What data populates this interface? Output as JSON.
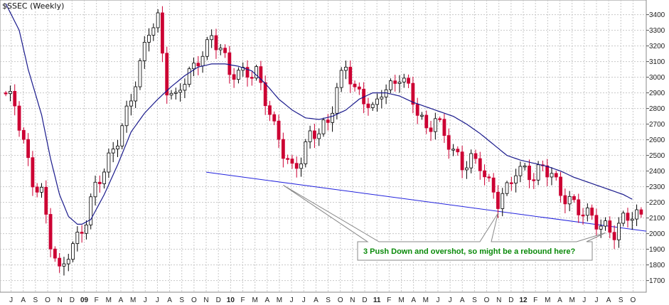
{
  "chart_data": {
    "type": "candlestick",
    "title": "$SSEC (Weekly)",
    "y_ticks": [
      1700,
      1800,
      1900,
      2000,
      2100,
      2200,
      2300,
      2400,
      2500,
      2600,
      2700,
      2800,
      2900,
      3000,
      3100,
      3200,
      3300,
      3400
    ],
    "ylim": [
      1630,
      3480
    ],
    "x_ticks": [
      "J",
      "A",
      "S",
      "O",
      "N",
      "D",
      "09",
      "F",
      "M",
      "A",
      "M",
      "J",
      "J",
      "A",
      "S",
      "O",
      "N",
      "D",
      "10",
      "F",
      "M",
      "A",
      "M",
      "J",
      "J",
      "A",
      "S",
      "O",
      "N",
      "D",
      "11",
      "F",
      "M",
      "A",
      "M",
      "J",
      "J",
      "A",
      "S",
      "O",
      "N",
      "D",
      "12",
      "F",
      "M",
      "A",
      "M",
      "J",
      "J",
      "A",
      "S",
      "O"
    ],
    "year_ticks": [
      "09",
      "10",
      "11",
      "12"
    ],
    "grid": true,
    "colors": {
      "up": "#ffffff",
      "down": "#cc0033",
      "outline": "#000000",
      "ma": "#1a1a8c",
      "trendline": "#2222dd",
      "annotation_text": "#0a8a0a",
      "grid": "#c8c8c8"
    },
    "moving_average_anchors": [
      [
        0,
        3470
      ],
      [
        3,
        3300
      ],
      [
        5,
        3050
      ],
      [
        8,
        2760
      ],
      [
        10,
        2480
      ],
      [
        12,
        2250
      ],
      [
        14,
        2110
      ],
      [
        16,
        2060
      ],
      [
        17,
        2060
      ],
      [
        19,
        2090
      ],
      [
        22,
        2250
      ],
      [
        25,
        2440
      ],
      [
        28,
        2650
      ],
      [
        31,
        2770
      ],
      [
        34,
        2860
      ],
      [
        37,
        2940
      ],
      [
        40,
        3010
      ],
      [
        43,
        3065
      ],
      [
        46,
        3085
      ],
      [
        49,
        3085
      ],
      [
        52,
        3070
      ],
      [
        55,
        3040
      ],
      [
        58,
        2960
      ],
      [
        61,
        2860
      ],
      [
        64,
        2790
      ],
      [
        67,
        2740
      ],
      [
        70,
        2730
      ],
      [
        73,
        2750
      ],
      [
        76,
        2790
      ],
      [
        79,
        2860
      ],
      [
        82,
        2900
      ],
      [
        85,
        2900
      ],
      [
        88,
        2880
      ],
      [
        91,
        2840
      ],
      [
        94,
        2810
      ],
      [
        97,
        2780
      ],
      [
        100,
        2750
      ],
      [
        103,
        2700
      ],
      [
        106,
        2640
      ],
      [
        109,
        2570
      ],
      [
        112,
        2500
      ],
      [
        115,
        2470
      ],
      [
        118,
        2450
      ],
      [
        121,
        2430
      ],
      [
        124,
        2400
      ],
      [
        127,
        2360
      ],
      [
        130,
        2330
      ],
      [
        133,
        2300
      ],
      [
        136,
        2270
      ],
      [
        138,
        2250
      ],
      [
        140,
        2220
      ]
    ],
    "price_anchors": [
      [
        0,
        2870
      ],
      [
        2,
        2820
      ],
      [
        4,
        2600
      ],
      [
        6,
        2350
      ],
      [
        8,
        2250
      ],
      [
        10,
        1920
      ],
      [
        12,
        1740
      ],
      [
        14,
        1900
      ],
      [
        16,
        1990
      ],
      [
        18,
        2080
      ],
      [
        20,
        2280
      ],
      [
        22,
        2400
      ],
      [
        24,
        2560
      ],
      [
        26,
        2700
      ],
      [
        28,
        2860
      ],
      [
        30,
        3050
      ],
      [
        32,
        3300
      ],
      [
        34,
        3390
      ],
      [
        36,
        2950
      ],
      [
        38,
        2850
      ],
      [
        40,
        2970
      ],
      [
        42,
        3050
      ],
      [
        44,
        3180
      ],
      [
        46,
        3270
      ],
      [
        48,
        3180
      ],
      [
        50,
        3000
      ],
      [
        52,
        3020
      ],
      [
        54,
        3050
      ],
      [
        56,
        3050
      ],
      [
        58,
        2850
      ],
      [
        60,
        2650
      ],
      [
        62,
        2520
      ],
      [
        64,
        2430
      ],
      [
        66,
        2500
      ],
      [
        68,
        2620
      ],
      [
        70,
        2630
      ],
      [
        72,
        2700
      ],
      [
        74,
        2950
      ],
      [
        76,
        3100
      ],
      [
        78,
        2900
      ],
      [
        80,
        2840
      ],
      [
        82,
        2780
      ],
      [
        84,
        2940
      ],
      [
        86,
        2950
      ],
      [
        88,
        3000
      ],
      [
        90,
        2900
      ],
      [
        92,
        2780
      ],
      [
        94,
        2680
      ],
      [
        96,
        2760
      ],
      [
        98,
        2620
      ],
      [
        100,
        2500
      ],
      [
        102,
        2430
      ],
      [
        104,
        2500
      ],
      [
        106,
        2460
      ],
      [
        108,
        2300
      ],
      [
        110,
        2180
      ],
      [
        112,
        2280
      ],
      [
        114,
        2430
      ],
      [
        116,
        2420
      ],
      [
        118,
        2350
      ],
      [
        120,
        2400
      ],
      [
        122,
        2380
      ],
      [
        124,
        2280
      ],
      [
        126,
        2230
      ],
      [
        128,
        2140
      ],
      [
        130,
        2100
      ],
      [
        132,
        2070
      ],
      [
        134,
        2060
      ],
      [
        136,
        2020
      ],
      [
        138,
        2080
      ],
      [
        140,
        2100
      ]
    ],
    "trendline": {
      "start": [
        43,
        2400
      ],
      "end": [
        142,
        2020
      ]
    },
    "annotation": {
      "text": "3 Push Down and overshot, so might be a rebound here?",
      "targets": [
        [
          62,
          2310
        ],
        [
          110,
          2130
        ],
        [
          134,
          2005
        ]
      ]
    }
  }
}
